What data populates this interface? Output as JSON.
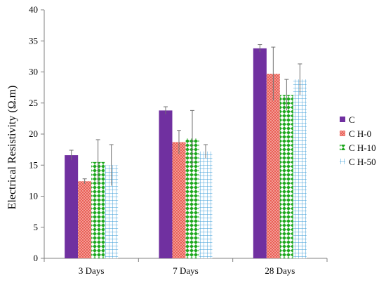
{
  "chart_data": {
    "type": "bar",
    "title": "",
    "xlabel": "",
    "ylabel": "Electrical Resistivity (Ω.m)",
    "ylim": [
      0,
      40
    ],
    "yticks": [
      "0",
      "5",
      "10",
      "15",
      "20",
      "25",
      "30",
      "35",
      "40"
    ],
    "grid": false,
    "legend_position": "right",
    "categories": [
      "3 Days",
      "7 Days",
      "28 Days"
    ],
    "series": [
      {
        "name": "C",
        "values": [
          16.6,
          23.8,
          33.8
        ],
        "errors": [
          0.8,
          0.6,
          0.6
        ],
        "color": "#7030a0",
        "pattern": "solid"
      },
      {
        "name": "C H-0",
        "values": [
          12.4,
          18.7,
          29.7
        ],
        "errors": [
          0.4,
          1.9,
          4.3
        ],
        "color": "#e8574e",
        "pattern": "crosshatch"
      },
      {
        "name": "C H-10",
        "values": [
          15.5,
          19.3,
          26.3
        ],
        "errors": [
          3.6,
          4.5,
          2.5
        ],
        "color": "#1ea81e",
        "pattern": "diamond"
      },
      {
        "name": "C H-50",
        "values": [
          15.0,
          17.2,
          28.8
        ],
        "errors": [
          3.3,
          1.1,
          2.5
        ],
        "color": "#3f9fd8",
        "pattern": "grid"
      }
    ]
  }
}
